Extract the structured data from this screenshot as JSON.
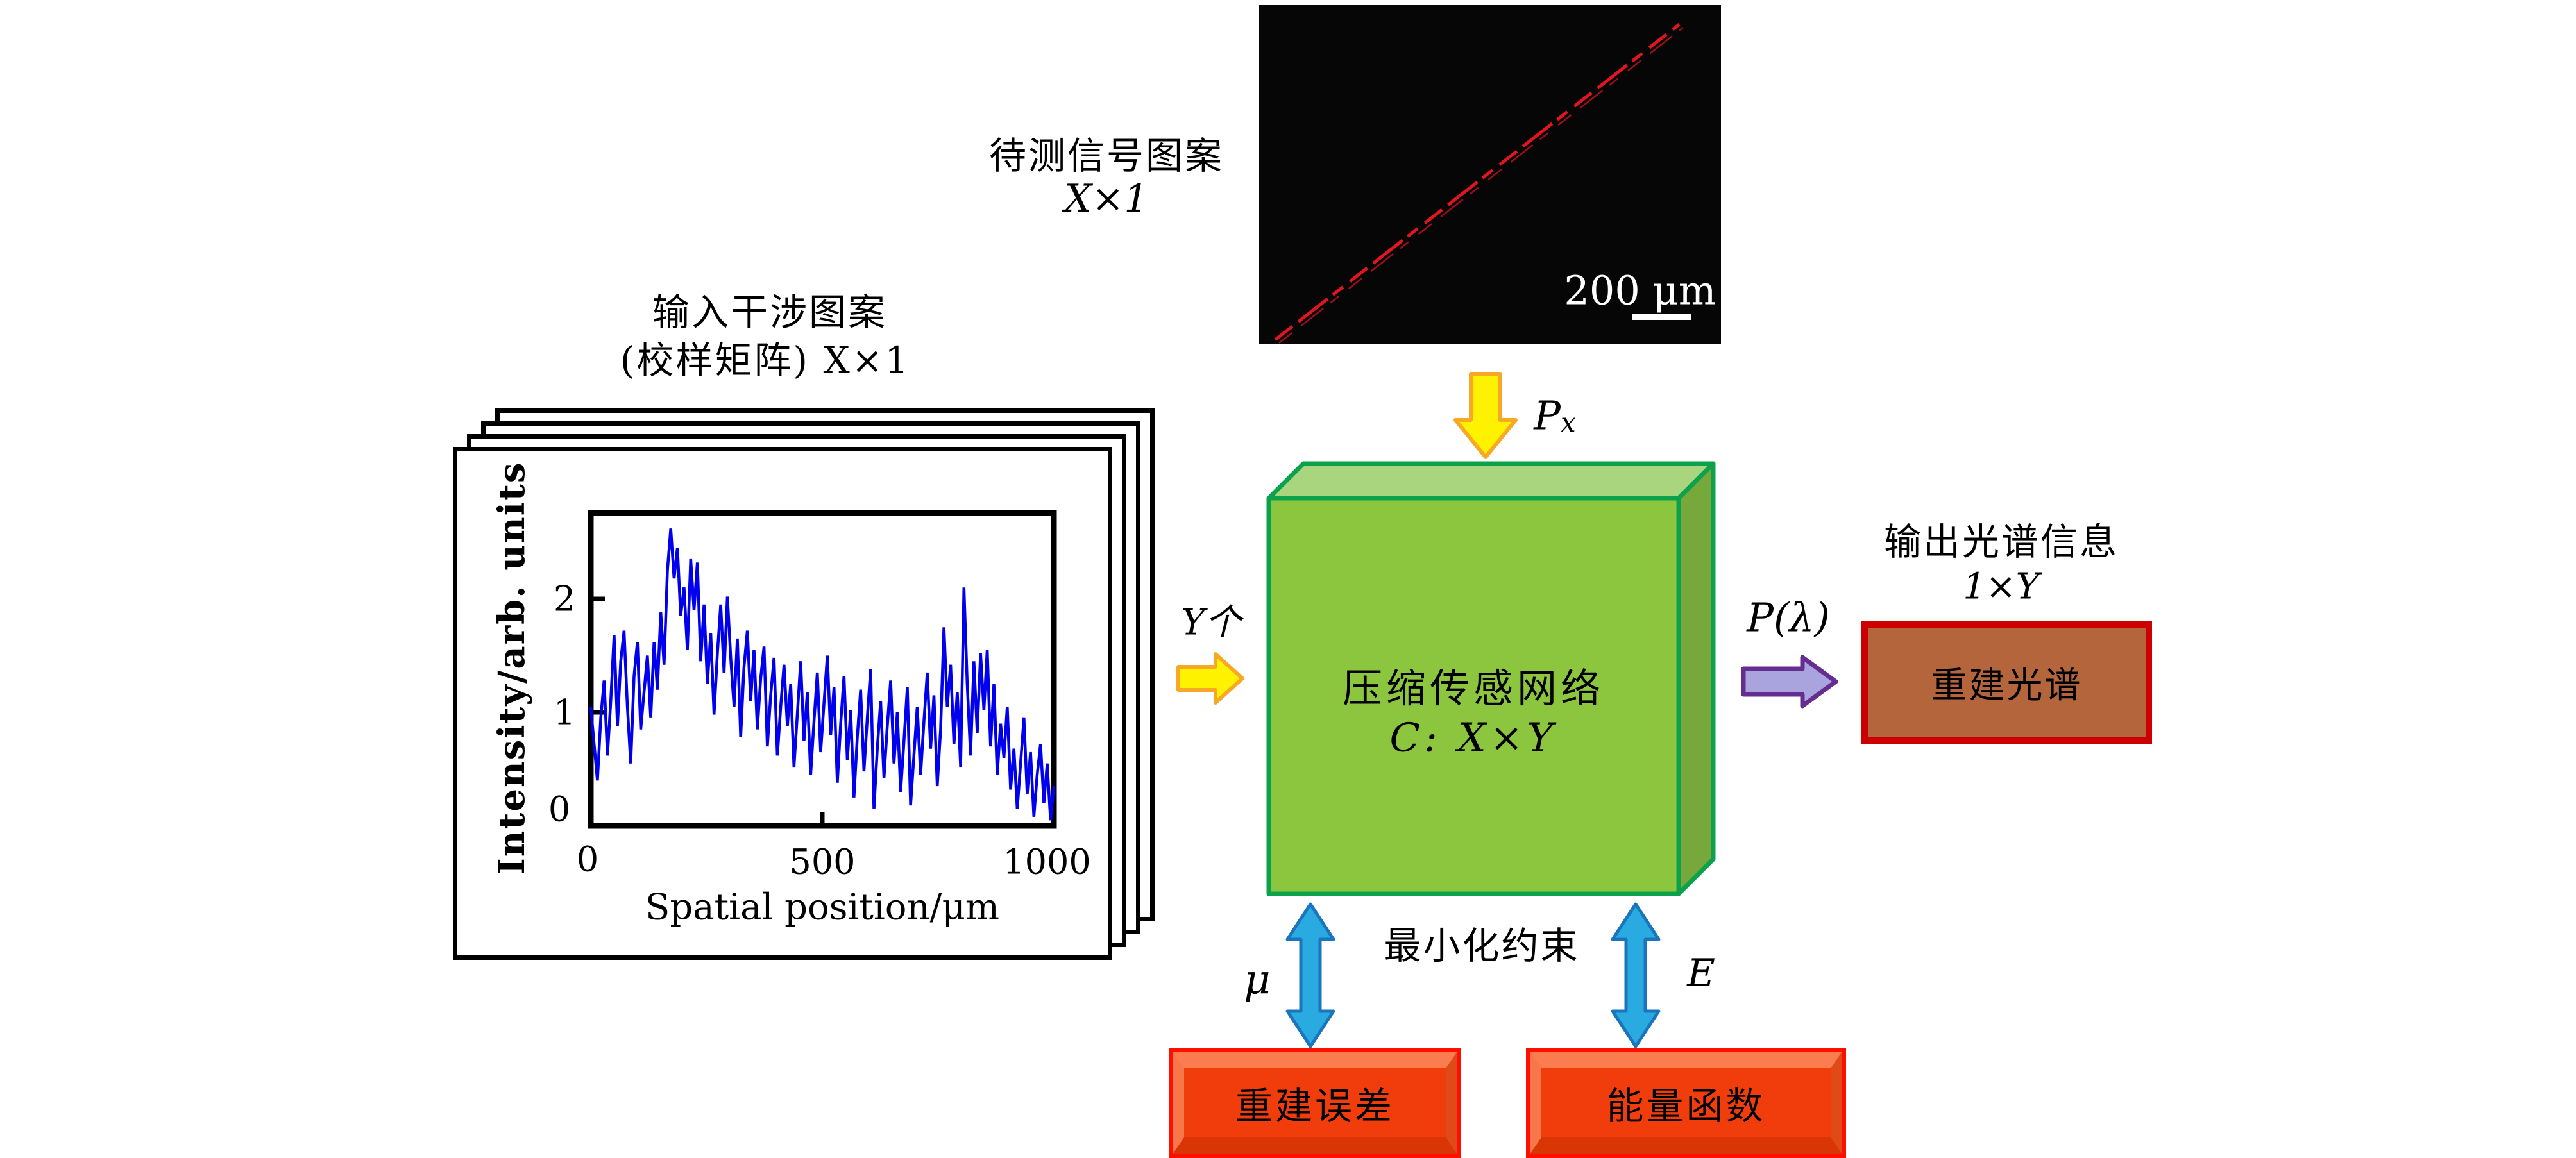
{
  "signal_image": {
    "label_line1": "待测信号图案",
    "label_line2": "X×1",
    "scalebar_text": "200 μm"
  },
  "input_stack": {
    "label_line1": "输入干涉图案",
    "label_line2": "(校样矩阵) X×1"
  },
  "chart_data": {
    "type": "line",
    "title": "",
    "xlabel": "Spatial position/μm",
    "ylabel": "Intensity/arb. units",
    "x_range": [
      0,
      1000
    ],
    "ylim": [
      0,
      2.76
    ],
    "xticks": [
      "0",
      "500",
      "1000"
    ],
    "yticks": [
      "0",
      "1",
      "2"
    ],
    "grid": false,
    "legend": "none",
    "series_name": "interference intensity",
    "values": [
      1.05,
      0.72,
      0.4,
      0.95,
      1.28,
      0.62,
      1.1,
      1.68,
      0.88,
      1.45,
      1.72,
      1.05,
      0.55,
      1.32,
      1.62,
      0.85,
      1.18,
      1.5,
      0.95,
      1.62,
      1.2,
      1.88,
      1.42,
      2.25,
      2.62,
      2.18,
      2.45,
      1.85,
      2.1,
      1.55,
      2.35,
      1.9,
      2.32,
      1.45,
      1.95,
      1.25,
      1.7,
      0.98,
      1.52,
      1.95,
      1.35,
      2.02,
      1.48,
      1.05,
      1.65,
      0.78,
      1.4,
      1.72,
      1.1,
      1.55,
      0.85,
      1.3,
      1.58,
      0.7,
      1.15,
      1.48,
      0.62,
      1.05,
      1.42,
      0.88,
      1.25,
      0.52,
      0.98,
      1.45,
      0.75,
      1.18,
      0.45,
      0.92,
      1.35,
      0.65,
      1.08,
      1.5,
      0.8,
      1.22,
      0.38,
      0.9,
      1.32,
      0.58,
      1.02,
      0.25,
      0.78,
      1.2,
      0.48,
      0.95,
      1.38,
      0.15,
      0.68,
      1.1,
      0.42,
      0.88,
      1.28,
      0.55,
      1.0,
      0.3,
      0.75,
      1.22,
      0.18,
      0.62,
      1.05,
      0.45,
      0.92,
      1.35,
      0.68,
      1.15,
      0.35,
      0.85,
      1.75,
      1.05,
      1.42,
      0.72,
      1.18,
      0.52,
      2.1,
      1.25,
      0.62,
      1.45,
      0.82,
      1.52,
      1.02,
      1.55,
      0.7,
      1.25,
      0.45,
      0.9,
      0.6,
      1.05,
      0.32,
      0.68,
      0.15,
      0.55,
      0.95,
      0.28,
      0.65,
      0.08,
      0.45,
      0.72,
      0.2,
      0.55,
      0.05,
      0.35
    ]
  },
  "flow": {
    "y_count_label": "Y个",
    "px_label": "P",
    "px_sub": "x",
    "p_lambda_label": "P(λ)",
    "network_line1": "压缩传感网络",
    "network_line2": "C: X×Y",
    "output_label_line1": "输出光谱信息",
    "output_label_line2": "1×Y",
    "output_box_label": "重建光谱",
    "min_constraint_label": "最小化约束",
    "mu_label": "μ",
    "e_label": "E",
    "error_box_label": "重建误差",
    "energy_box_label": "能量函数"
  },
  "colors": {
    "curve": "#0000EE",
    "network_front": "#8CC63F",
    "network_top": "#A9D57F",
    "network_side": "#76A83B",
    "network_edge": "#0CA24B",
    "yellow_arrow_fill": "#FFF200",
    "yellow_arrow_border": "#F9A825",
    "purple_arrow_fill": "#A9A3DE",
    "purple_arrow_border": "#662D91",
    "blue_arrow_fill": "#29ABE2",
    "blue_arrow_border": "#1B75BC",
    "output_box_fill": "#B4653C",
    "output_box_border": "#CC0000",
    "bottom_box_fill": "#F13C0C",
    "bottom_box_border": "#FF0F00",
    "signal_line": "#E0161F"
  }
}
